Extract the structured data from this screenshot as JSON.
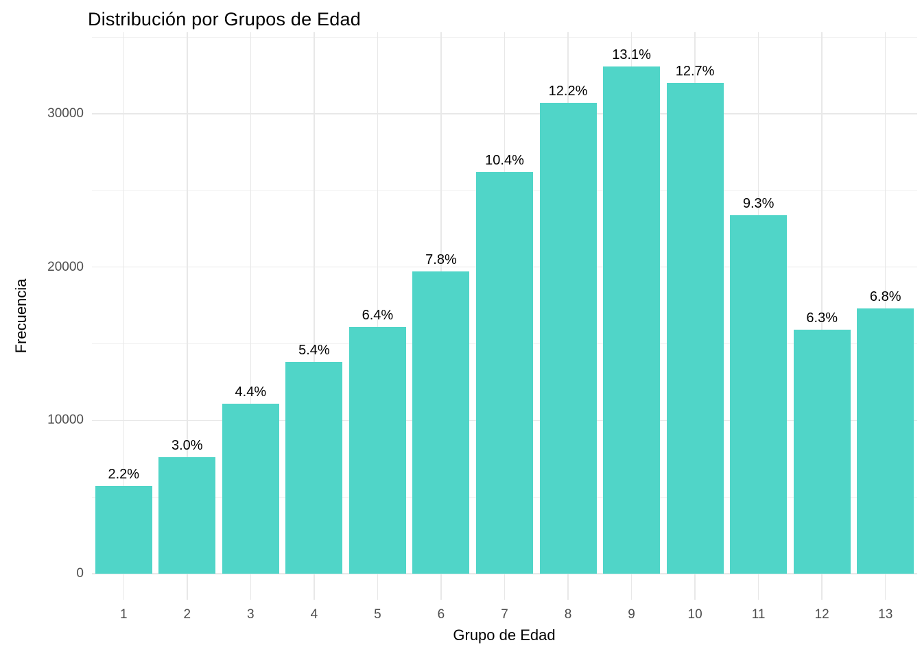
{
  "chart_data": {
    "type": "bar",
    "title": "Distribución por Grupos de Edad",
    "xlabel": "Grupo de Edad",
    "ylabel": "Frecuencia",
    "categories": [
      "1",
      "2",
      "3",
      "4",
      "5",
      "6",
      "7",
      "8",
      "9",
      "10",
      "11",
      "12",
      "13"
    ],
    "values": [
      5700,
      7600,
      11100,
      13800,
      16100,
      19700,
      26200,
      30700,
      33100,
      32000,
      23400,
      15900,
      17300
    ],
    "bar_labels": [
      "2.2%",
      "3.0%",
      "4.4%",
      "5.4%",
      "6.4%",
      "7.8%",
      "10.4%",
      "12.2%",
      "13.1%",
      "12.7%",
      "9.3%",
      "6.3%",
      "6.8%"
    ],
    "yticks": [
      0,
      10000,
      20000,
      30000
    ],
    "ytick_labels": [
      "0",
      "10000",
      "20000",
      "30000"
    ],
    "yticks_minor": [
      5000,
      15000,
      25000,
      35000
    ],
    "ylim": [
      0,
      35400
    ],
    "grid": "major-and-minor",
    "legend": "none",
    "colors": {
      "bar_fill": "#50D5C8",
      "grid_major": "#E8E8E8",
      "grid_minor": "#F1F1F1",
      "tick_text": "#4d4d4d",
      "text": "#000000",
      "background": "#ffffff"
    }
  }
}
